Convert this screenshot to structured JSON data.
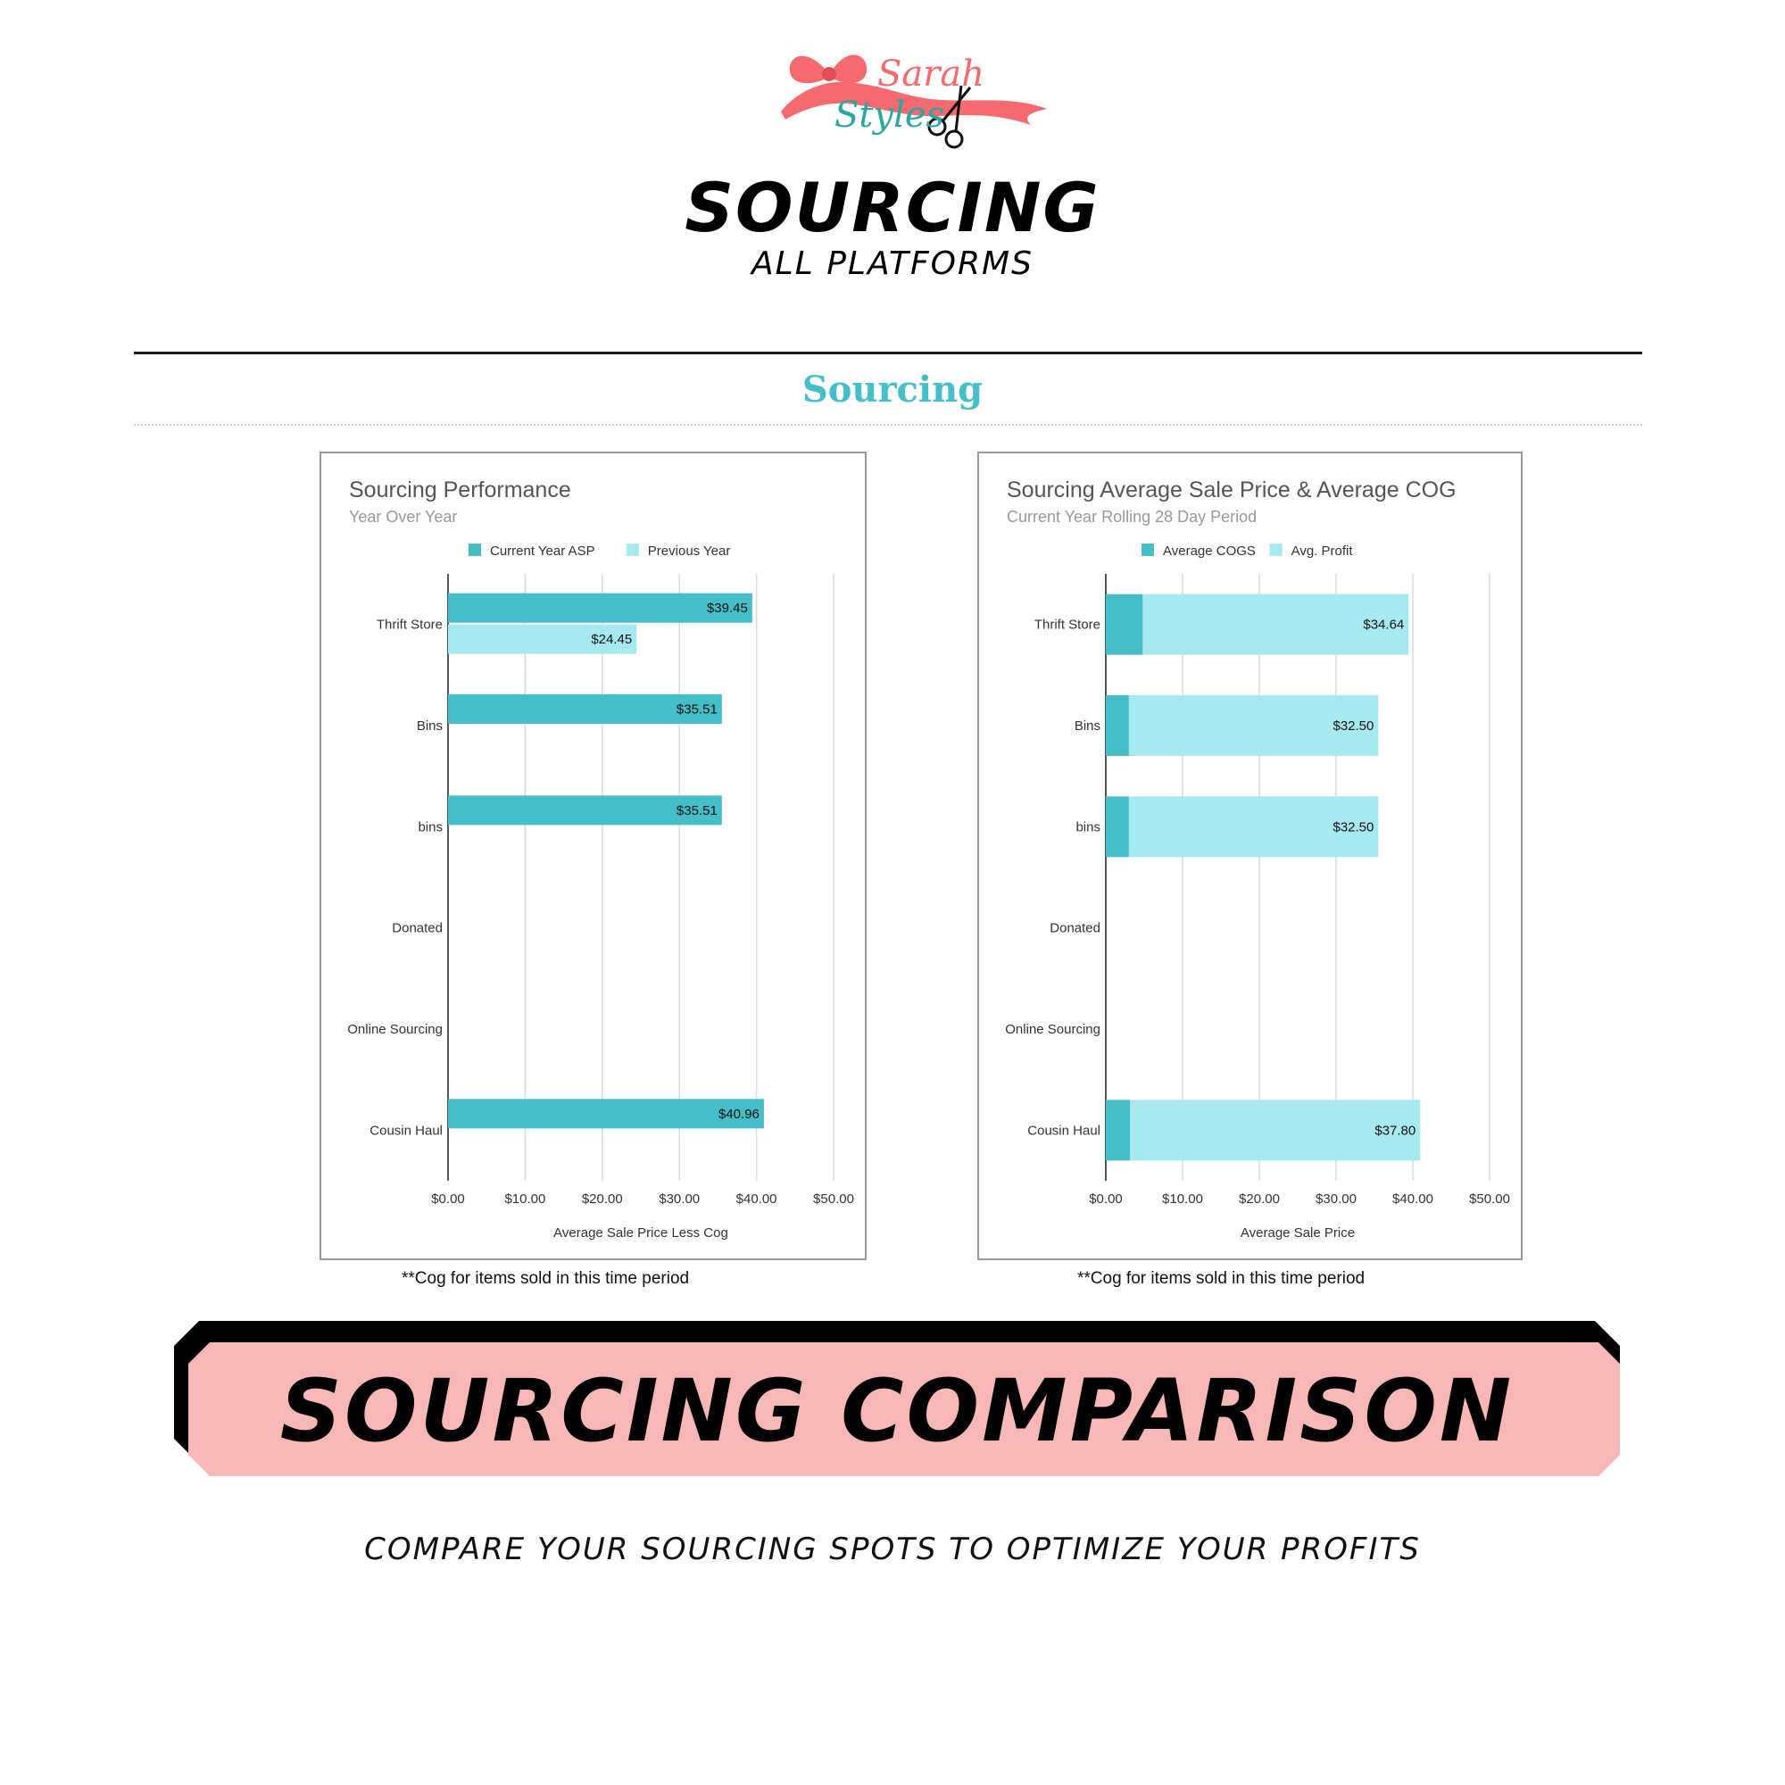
{
  "brand": {
    "logo_line1": "Sarah",
    "logo_line2": "Styles"
  },
  "header": {
    "title": "SOURCING",
    "subtitle": "ALL PLATFORMS"
  },
  "section": {
    "heading": "Sourcing"
  },
  "colors": {
    "teal_dark": "#45bec7",
    "teal_light": "#a6e9ee",
    "heading_teal": "#45c0c8",
    "banner_pink": "#f9b8b8",
    "logo_pink": "#f5696f",
    "logo_teal": "#2aa7a0"
  },
  "chart_data": [
    {
      "type": "bar",
      "orientation": "horizontal",
      "title": "Sourcing Performance",
      "subtitle": "Year Over Year",
      "legend_position": "top",
      "categories": [
        "Thrift Store",
        "Bins",
        "bins",
        "Donated",
        "Online Sourcing",
        "Cousin Haul"
      ],
      "series": [
        {
          "name": "Current Year ASP",
          "color": "#45bec7",
          "values": [
            39.45,
            35.51,
            35.51,
            null,
            null,
            40.96
          ],
          "labels": [
            "$39.45",
            "$35.51",
            "$35.51",
            "",
            "",
            "$40.96"
          ]
        },
        {
          "name": "Previous Year",
          "color": "#a6e9ee",
          "values": [
            24.45,
            null,
            null,
            null,
            null,
            null
          ],
          "labels": [
            "$24.45",
            "",
            "",
            "",
            "",
            ""
          ]
        }
      ],
      "xlim": [
        0,
        50
      ],
      "xticks": [
        "$0.00",
        "$10.00",
        "$20.00",
        "$30.00",
        "$40.00",
        "$50.00"
      ],
      "xlabel": "Average Sale Price Less Cog",
      "grid": true,
      "footnote": "**Cog for items sold in this time period"
    },
    {
      "type": "bar",
      "orientation": "horizontal",
      "stacked": true,
      "title": "Sourcing Average Sale Price & Average COG",
      "subtitle": "Current Year Rolling 28 Day Period",
      "legend_position": "top",
      "categories": [
        "Thrift Store",
        "Bins",
        "bins",
        "Donated",
        "Online Sourcing",
        "Cousin Haul"
      ],
      "series": [
        {
          "name": "Average COGS",
          "color": "#45bec7",
          "values": [
            4.81,
            3.01,
            3.01,
            null,
            null,
            3.16
          ],
          "labels": [
            "$4.81",
            "$3.01",
            "$3.01",
            "",
            "",
            "$3.16"
          ]
        },
        {
          "name": "Avg. Profit",
          "color": "#a6e9ee",
          "values": [
            34.64,
            32.5,
            32.5,
            null,
            null,
            37.8
          ],
          "labels": [
            "$34.64",
            "$32.50",
            "$32.50",
            "",
            "",
            "$37.80"
          ]
        }
      ],
      "xlim": [
        0,
        50
      ],
      "xticks": [
        "$0.00",
        "$10.00",
        "$20.00",
        "$30.00",
        "$40.00",
        "$50.00"
      ],
      "xlabel": "Average Sale Price",
      "grid": true,
      "footnote": "**Cog for items sold in this time period"
    }
  ],
  "banner": {
    "text": "SOURCING COMPARISON"
  },
  "tagline": "COMPARE YOUR SOURCING SPOTS TO OPTIMIZE YOUR PROFITS"
}
